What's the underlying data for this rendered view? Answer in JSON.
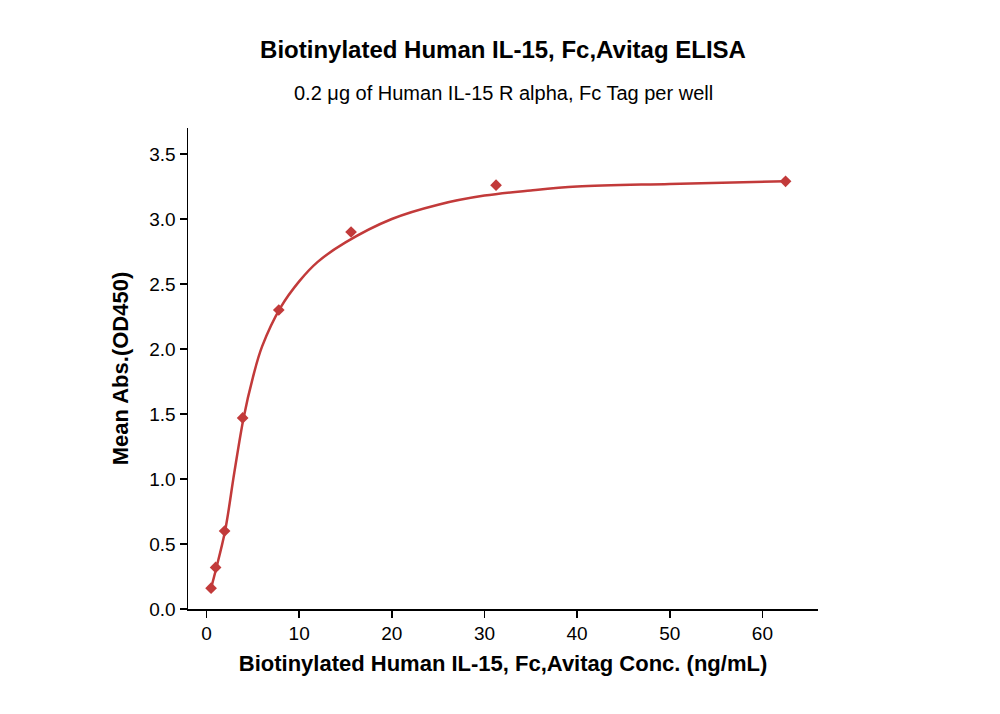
{
  "chart_data": {
    "type": "scatter",
    "title": "Biotinylated Human IL-15, Fc,Avitag ELISA",
    "subtitle": "0.2 μg of Human IL-15 R alpha, Fc Tag per well",
    "x_label": "Biotinylated Human IL-15, Fc,Avitag Conc. (ng/mL)",
    "y_label": "Mean Abs.(OD450)",
    "series": [
      {
        "type": "scatter",
        "marker": "diamond",
        "color": "#c23a3a",
        "x": [
          0.49,
          0.98,
          1.95,
          3.9,
          7.8,
          15.6,
          31.25,
          62.5
        ],
        "values": [
          0.16,
          0.32,
          0.6,
          1.47,
          2.3,
          2.9,
          3.26,
          3.29
        ]
      },
      {
        "type": "line",
        "line_style": "solid",
        "color": "#c23a3a",
        "x": [
          0.49,
          1,
          2,
          3,
          4,
          5,
          6,
          8,
          10,
          12,
          15,
          20,
          25,
          30,
          35,
          40,
          50,
          62.5
        ],
        "values": [
          0.16,
          0.3,
          0.6,
          1.05,
          1.47,
          1.78,
          2.02,
          2.32,
          2.52,
          2.67,
          2.82,
          3.0,
          3.11,
          3.18,
          3.22,
          3.25,
          3.27,
          3.29
        ]
      }
    ],
    "xlim": [
      -2,
      66
    ],
    "ylim": [
      0,
      3.7
    ],
    "xticks": [
      0,
      10,
      20,
      30,
      40,
      50,
      60
    ],
    "yticks": [
      {
        "value": 0,
        "label": "0.0"
      },
      0.5,
      {
        "value": 1,
        "label": "1.0"
      },
      1.5,
      {
        "value": 2,
        "label": "2.0"
      },
      2.5,
      {
        "value": 3,
        "label": "3.0"
      },
      3.5
    ],
    "grid": false
  }
}
